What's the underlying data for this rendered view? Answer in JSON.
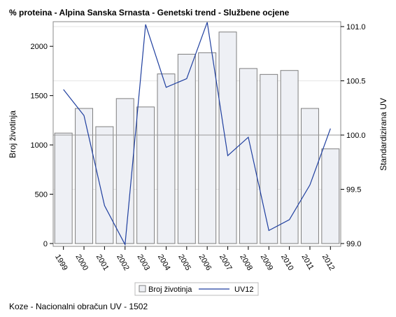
{
  "chart_data": {
    "type": "bar",
    "title": "% proteina - Alpina Sanska Srnasta - Genetski trend - Službene ocjene",
    "categories": [
      "1999",
      "2000",
      "2001",
      "2002",
      "2003",
      "2004",
      "2005",
      "2006",
      "2007",
      "2008",
      "2009",
      "2010",
      "2011",
      "2012"
    ],
    "bar_series": {
      "name": "Broj životinja",
      "values": [
        1120,
        1370,
        1185,
        1470,
        1385,
        1720,
        1920,
        1935,
        2145,
        1775,
        1715,
        1755,
        1370,
        960
      ],
      "color": "#eef0f5",
      "stroke": "#7f7f7f"
    },
    "line_series": {
      "name": "UV12",
      "values": [
        100.42,
        100.18,
        99.35,
        98.99,
        101.02,
        100.44,
        100.52,
        101.04,
        99.81,
        99.98,
        99.12,
        99.22,
        99.54,
        100.06
      ],
      "color": "#1f3f9f"
    },
    "ylabel": "Broj životinja",
    "y2label": "Standardizirana UV",
    "ylim": [
      0,
      2200
    ],
    "y2lim": [
      99.0,
      101.0
    ],
    "yticks": [
      "0",
      "500",
      "1000",
      "1500",
      "2000"
    ],
    "y2ticks": [
      "99.0",
      "99.5",
      "100.0",
      "100.5",
      "101.0"
    ],
    "reference_line_y2": 100.0,
    "grid": true,
    "legend_position": "bottom-center",
    "footnote": "Koze - Nacionalni obračun UV - 1502"
  }
}
